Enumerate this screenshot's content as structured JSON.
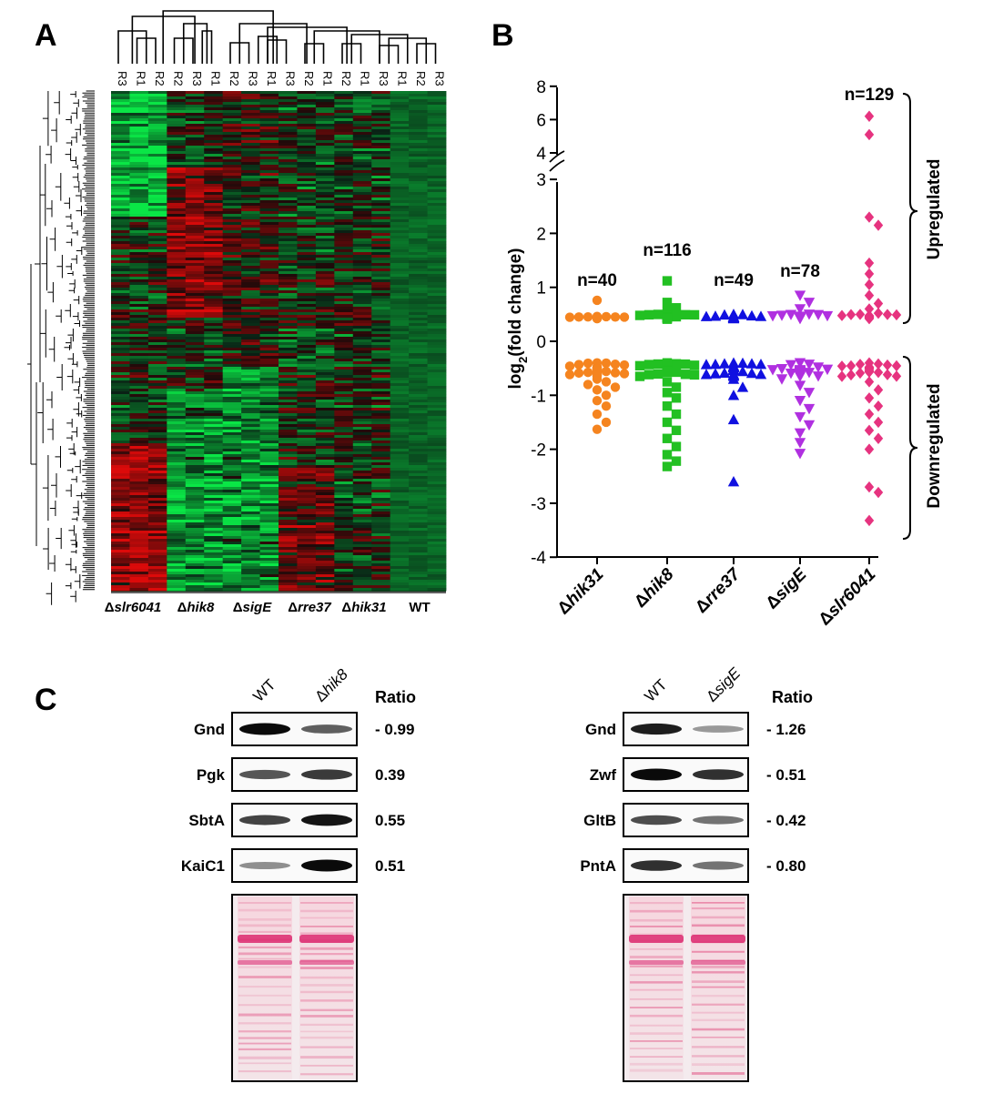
{
  "panel_labels": {
    "a": "A",
    "b": "B",
    "c": "C"
  },
  "panel_a": {
    "column_labels": [
      "R3",
      "R1",
      "R2",
      "R2",
      "R3",
      "R1",
      "R2",
      "R3",
      "R1",
      "R3",
      "R2",
      "R1",
      "R2",
      "R1",
      "R3",
      "R1",
      "R2",
      "R3"
    ],
    "group_labels": [
      {
        "prefix": "Δ",
        "name": "slr6041"
      },
      {
        "prefix": "Δ",
        "name": "hik8"
      },
      {
        "prefix": "Δ",
        "name": "sigE"
      },
      {
        "prefix": "Δ",
        "name": "rre37"
      },
      {
        "prefix": "Δ",
        "name": "hik31"
      },
      {
        "prefix": "",
        "name": "WT"
      }
    ],
    "heatmap_colors": {
      "low": "#18e060",
      "mid": "#000000",
      "high": "#e01010"
    }
  },
  "chart_data": {
    "type": "scatter",
    "ylabel_main": "log",
    "ylabel_sub": "2",
    "ylabel_rest": "(fold change)",
    "y_ticks_lower": [
      "3",
      "2",
      "1",
      "0",
      "-1",
      "-2",
      "-3",
      "-4"
    ],
    "y_ticks_upper": [
      "8",
      "6",
      "4"
    ],
    "ylim_lower": [
      -4,
      3
    ],
    "ylim_upper": [
      4,
      8
    ],
    "categories": [
      {
        "prefix": "Δ",
        "name": "hik31",
        "n_label": "n=40",
        "color": "#f5841f",
        "marker": "circle",
        "up": [
          0.76,
          0.46,
          0.42
        ],
        "down": [
          -0.4,
          -0.44,
          -0.48,
          -0.52,
          -0.55,
          -0.6,
          -0.65,
          -0.7,
          -0.75,
          -0.8,
          -0.85,
          -0.9,
          -1.0,
          -1.1,
          -1.2,
          -1.35,
          -1.5,
          -1.63
        ]
      },
      {
        "prefix": "Δ",
        "name": "hik8",
        "n_label": "n=116",
        "color": "#22c022",
        "marker": "square",
        "up": [
          1.12,
          0.72,
          0.62,
          0.55,
          0.48,
          0.44,
          0.41
        ],
        "down": [
          -0.4,
          -0.46,
          -0.55,
          -0.65,
          -0.75,
          -0.85,
          -0.95,
          -1.05,
          -1.2,
          -1.35,
          -1.5,
          -1.65,
          -1.8,
          -1.95,
          -2.1,
          -2.22,
          -2.32
        ]
      },
      {
        "prefix": "Δ",
        "name": "rre37",
        "n_label": "n=49",
        "color": "#1010e0",
        "marker": "triangle-up",
        "up": [
          0.5,
          0.46,
          0.42
        ],
        "down": [
          -0.4,
          -0.46,
          -0.52,
          -0.6,
          -0.7,
          -0.85,
          -1.0,
          -1.45,
          -2.6
        ]
      },
      {
        "prefix": "Δ",
        "name": "sigE",
        "n_label": "n=78",
        "color": "#b030e0",
        "marker": "triangle-down",
        "up": [
          0.85,
          0.72,
          0.6,
          0.5,
          0.46
        ],
        "down": [
          -0.4,
          -0.48,
          -0.58,
          -0.7,
          -0.82,
          -0.95,
          -1.1,
          -1.25,
          -1.4,
          -1.55,
          -1.7,
          -1.88,
          -2.08
        ]
      },
      {
        "prefix": "Δ",
        "name": "slr6041",
        "n_label": "n=129",
        "color": "#e6337f",
        "marker": "diamond",
        "up": [
          6.2,
          5.1,
          2.3,
          2.15,
          1.45,
          1.25,
          1.05,
          0.85,
          0.7,
          0.6,
          0.52,
          0.46,
          0.42
        ],
        "down": [
          -0.4,
          -0.46,
          -0.55,
          -0.65,
          -0.75,
          -0.9,
          -1.05,
          -1.2,
          -1.35,
          -1.5,
          -1.65,
          -1.8,
          -2.0,
          -2.7,
          -2.8,
          -3.32
        ]
      }
    ],
    "bracket_labels": {
      "up": "Upregulated",
      "down": "Downregulated"
    }
  },
  "panel_c": {
    "ratio_header": "Ratio",
    "left": {
      "lane_labels": [
        {
          "prefix": "",
          "name": "WT"
        },
        {
          "prefix": "Δ",
          "name": "hik8"
        }
      ],
      "rows": [
        {
          "protein": "Gnd",
          "ratio": "- 0.99",
          "wt_intensity": 1.0,
          "mut_intensity": 0.55
        },
        {
          "protein": "Pgk",
          "ratio": "0.39",
          "wt_intensity": 0.6,
          "mut_intensity": 0.75
        },
        {
          "protein": "SbtA",
          "ratio": "0.55",
          "wt_intensity": 0.7,
          "mut_intensity": 0.95
        },
        {
          "protein": "KaiC1",
          "ratio": "0.51",
          "wt_intensity": 0.3,
          "mut_intensity": 1.0
        }
      ]
    },
    "right": {
      "lane_labels": [
        {
          "prefix": "",
          "name": "WT"
        },
        {
          "prefix": "Δ",
          "name": "sigE"
        }
      ],
      "rows": [
        {
          "protein": "Gnd",
          "ratio": "- 1.26",
          "wt_intensity": 0.9,
          "mut_intensity": 0.25
        },
        {
          "protein": "Zwf",
          "ratio": "- 0.51",
          "wt_intensity": 1.0,
          "mut_intensity": 0.8
        },
        {
          "protein": "GltB",
          "ratio": "- 0.42",
          "wt_intensity": 0.65,
          "mut_intensity": 0.45
        },
        {
          "protein": "PntA",
          "ratio": "- 0.80",
          "wt_intensity": 0.8,
          "mut_intensity": 0.45
        }
      ]
    }
  }
}
